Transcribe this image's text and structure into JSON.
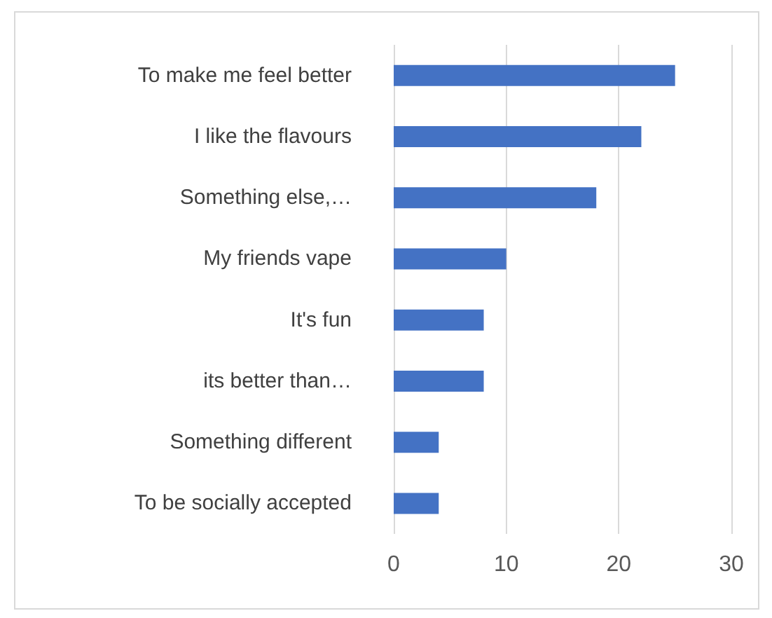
{
  "chart_data": {
    "type": "bar",
    "orientation": "horizontal",
    "categories": [
      "To make me feel better",
      "I like the flavours",
      "Something else,…",
      "My friends vape",
      "It's fun",
      "its better than…",
      "Something different",
      "To be socially accepted"
    ],
    "values": [
      25,
      22,
      18,
      10,
      8,
      8,
      4,
      4
    ],
    "color": "#4472c4",
    "xlim": [
      0,
      30
    ],
    "xticks": [
      0,
      10,
      20,
      30
    ],
    "grid": "x"
  }
}
